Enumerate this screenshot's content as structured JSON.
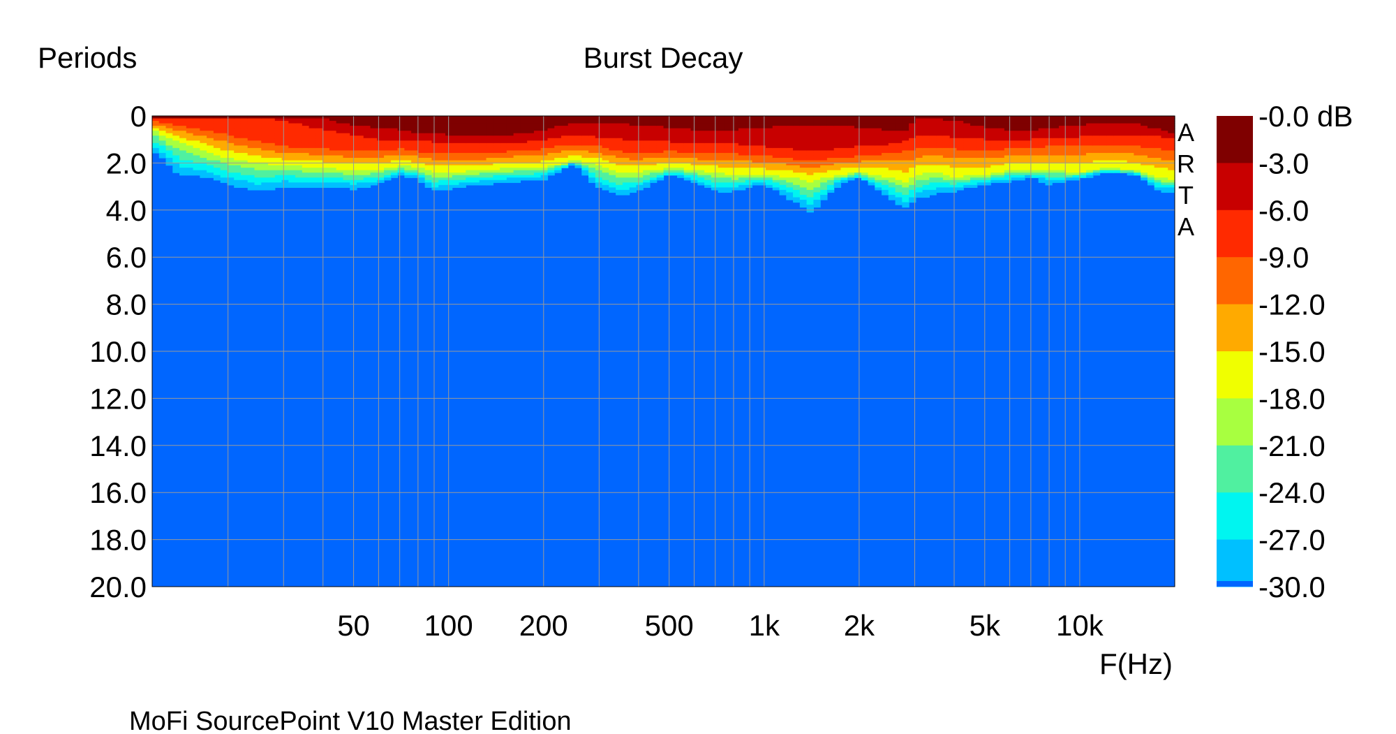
{
  "chart_data": {
    "type": "heatmap",
    "title": "Burst Decay",
    "ylabel": "Periods",
    "xlabel": "F(Hz)",
    "footer": "MoFi SourcePoint V10 Master Edition",
    "watermark": "ARTA",
    "x_scale": "log",
    "xlim": [
      11.5,
      20000
    ],
    "ylim": [
      20,
      0
    ],
    "grid": true,
    "x_ticks": [
      {
        "value": 50,
        "label": "50"
      },
      {
        "value": 100,
        "label": "100"
      },
      {
        "value": 200,
        "label": "200"
      },
      {
        "value": 500,
        "label": "500"
      },
      {
        "value": 1000,
        "label": "1k"
      },
      {
        "value": 2000,
        "label": "2k"
      },
      {
        "value": 5000,
        "label": "5k"
      },
      {
        "value": 10000,
        "label": "10k"
      }
    ],
    "x_minor_grid": [
      20,
      30,
      40,
      50,
      60,
      70,
      80,
      90,
      100,
      200,
      300,
      400,
      500,
      600,
      700,
      800,
      900,
      1000,
      2000,
      3000,
      4000,
      5000,
      6000,
      7000,
      8000,
      9000,
      10000
    ],
    "y_ticks": [
      "0",
      "2.0",
      "4.0",
      "6.0",
      "8.0",
      "10.0",
      "12.0",
      "14.0",
      "16.0",
      "18.0",
      "20.0"
    ],
    "y_tick_values": [
      0,
      2,
      4,
      6,
      8,
      10,
      12,
      14,
      16,
      18,
      20
    ],
    "colorbar": {
      "labels": [
        "-0.0 dB",
        "-3.0",
        "-6.0",
        "-9.0",
        "-12.0",
        "-15.0",
        "-18.0",
        "-21.0",
        "-24.0",
        "-27.0",
        "-30.0"
      ],
      "levels_db": [
        0,
        -3,
        -6,
        -9,
        -12,
        -15,
        -18,
        -21,
        -24,
        -27,
        -30
      ],
      "colors": [
        "#7f0000",
        "#c80000",
        "#ff2a00",
        "#ff6600",
        "#ffaa00",
        "#f0ff00",
        "#a8ff40",
        "#50f0a0",
        "#00f5f0",
        "#00c0ff",
        "#0066ff"
      ]
    },
    "decay_contours": {
      "description_units": "frequency Hz vs periods at which level falls to each dB threshold",
      "freq": [
        11.5,
        14,
        17,
        20,
        25,
        30,
        40,
        50,
        60,
        70,
        80,
        90,
        100,
        130,
        160,
        200,
        250,
        300,
        350,
        400,
        500,
        600,
        700,
        800,
        1000,
        1200,
        1400,
        1700,
        2000,
        2500,
        2800,
        3100,
        3500,
        4000,
        5000,
        6000,
        7000,
        8000,
        10000,
        12000,
        15000,
        18000,
        20000
      ],
      "p_minus3": [
        0.1,
        0.1,
        0.1,
        0.1,
        0.1,
        0.1,
        0.1,
        0.4,
        0.5,
        0.6,
        0.7,
        0.7,
        0.8,
        0.8,
        0.8,
        0.6,
        0.3,
        0.3,
        0.3,
        0.4,
        0.5,
        0.6,
        0.6,
        0.6,
        0.5,
        0.4,
        0.4,
        0.4,
        0.5,
        0.6,
        0.6,
        0.1,
        0.1,
        0.2,
        0.5,
        0.6,
        0.6,
        0.5,
        0.4,
        0.3,
        0.3,
        0.6,
        0.8
      ],
      "p_minus6": [
        0.1,
        0.1,
        0.1,
        0.1,
        0.1,
        0.2,
        0.6,
        0.8,
        1.0,
        1.0,
        1.1,
        1.1,
        1.2,
        1.2,
        1.2,
        1.0,
        0.8,
        0.9,
        1.0,
        1.0,
        1.1,
        1.2,
        1.1,
        1.2,
        1.3,
        1.4,
        1.5,
        1.4,
        1.3,
        1.2,
        1.1,
        0.8,
        0.8,
        0.9,
        1.0,
        1.0,
        1.0,
        0.9,
        0.9,
        0.8,
        0.8,
        0.9,
        1.0
      ],
      "p_minus9": [
        0.2,
        0.4,
        0.6,
        0.8,
        1.1,
        1.3,
        1.4,
        1.5,
        1.5,
        1.4,
        1.5,
        1.6,
        1.6,
        1.6,
        1.5,
        1.4,
        1.2,
        1.3,
        1.5,
        1.6,
        1.5,
        1.6,
        1.6,
        1.6,
        1.7,
        1.8,
        1.9,
        1.8,
        1.7,
        1.6,
        1.5,
        1.4,
        1.3,
        1.4,
        1.5,
        1.4,
        1.4,
        1.3,
        1.3,
        1.2,
        1.3,
        1.4,
        1.5
      ],
      "p_minus18": [
        0.6,
        1.1,
        1.5,
        1.8,
        2.0,
        2.1,
        2.2,
        2.3,
        2.3,
        2.1,
        2.2,
        2.4,
        2.4,
        2.3,
        2.2,
        2.2,
        1.9,
        2.1,
        2.4,
        2.4,
        2.2,
        2.3,
        2.4,
        2.5,
        2.5,
        2.6,
        2.8,
        2.5,
        2.4,
        2.6,
        2.8,
        2.5,
        2.4,
        2.6,
        2.5,
        2.3,
        2.3,
        2.3,
        2.4,
        2.2,
        2.3,
        2.6,
        2.8
      ],
      "p_minus30": [
        1.4,
        2.5,
        2.6,
        2.9,
        3.2,
        3.0,
        3.0,
        3.1,
        2.9,
        2.5,
        2.7,
        3.2,
        3.1,
        2.9,
        2.8,
        2.7,
        2.0,
        3.1,
        3.4,
        3.2,
        2.5,
        2.8,
        3.2,
        3.2,
        2.9,
        3.5,
        4.1,
        3.0,
        2.6,
        3.5,
        3.9,
        3.5,
        3.3,
        3.2,
        2.9,
        2.8,
        2.6,
        2.9,
        2.7,
        2.4,
        2.5,
        3.2,
        3.2
      ]
    }
  }
}
